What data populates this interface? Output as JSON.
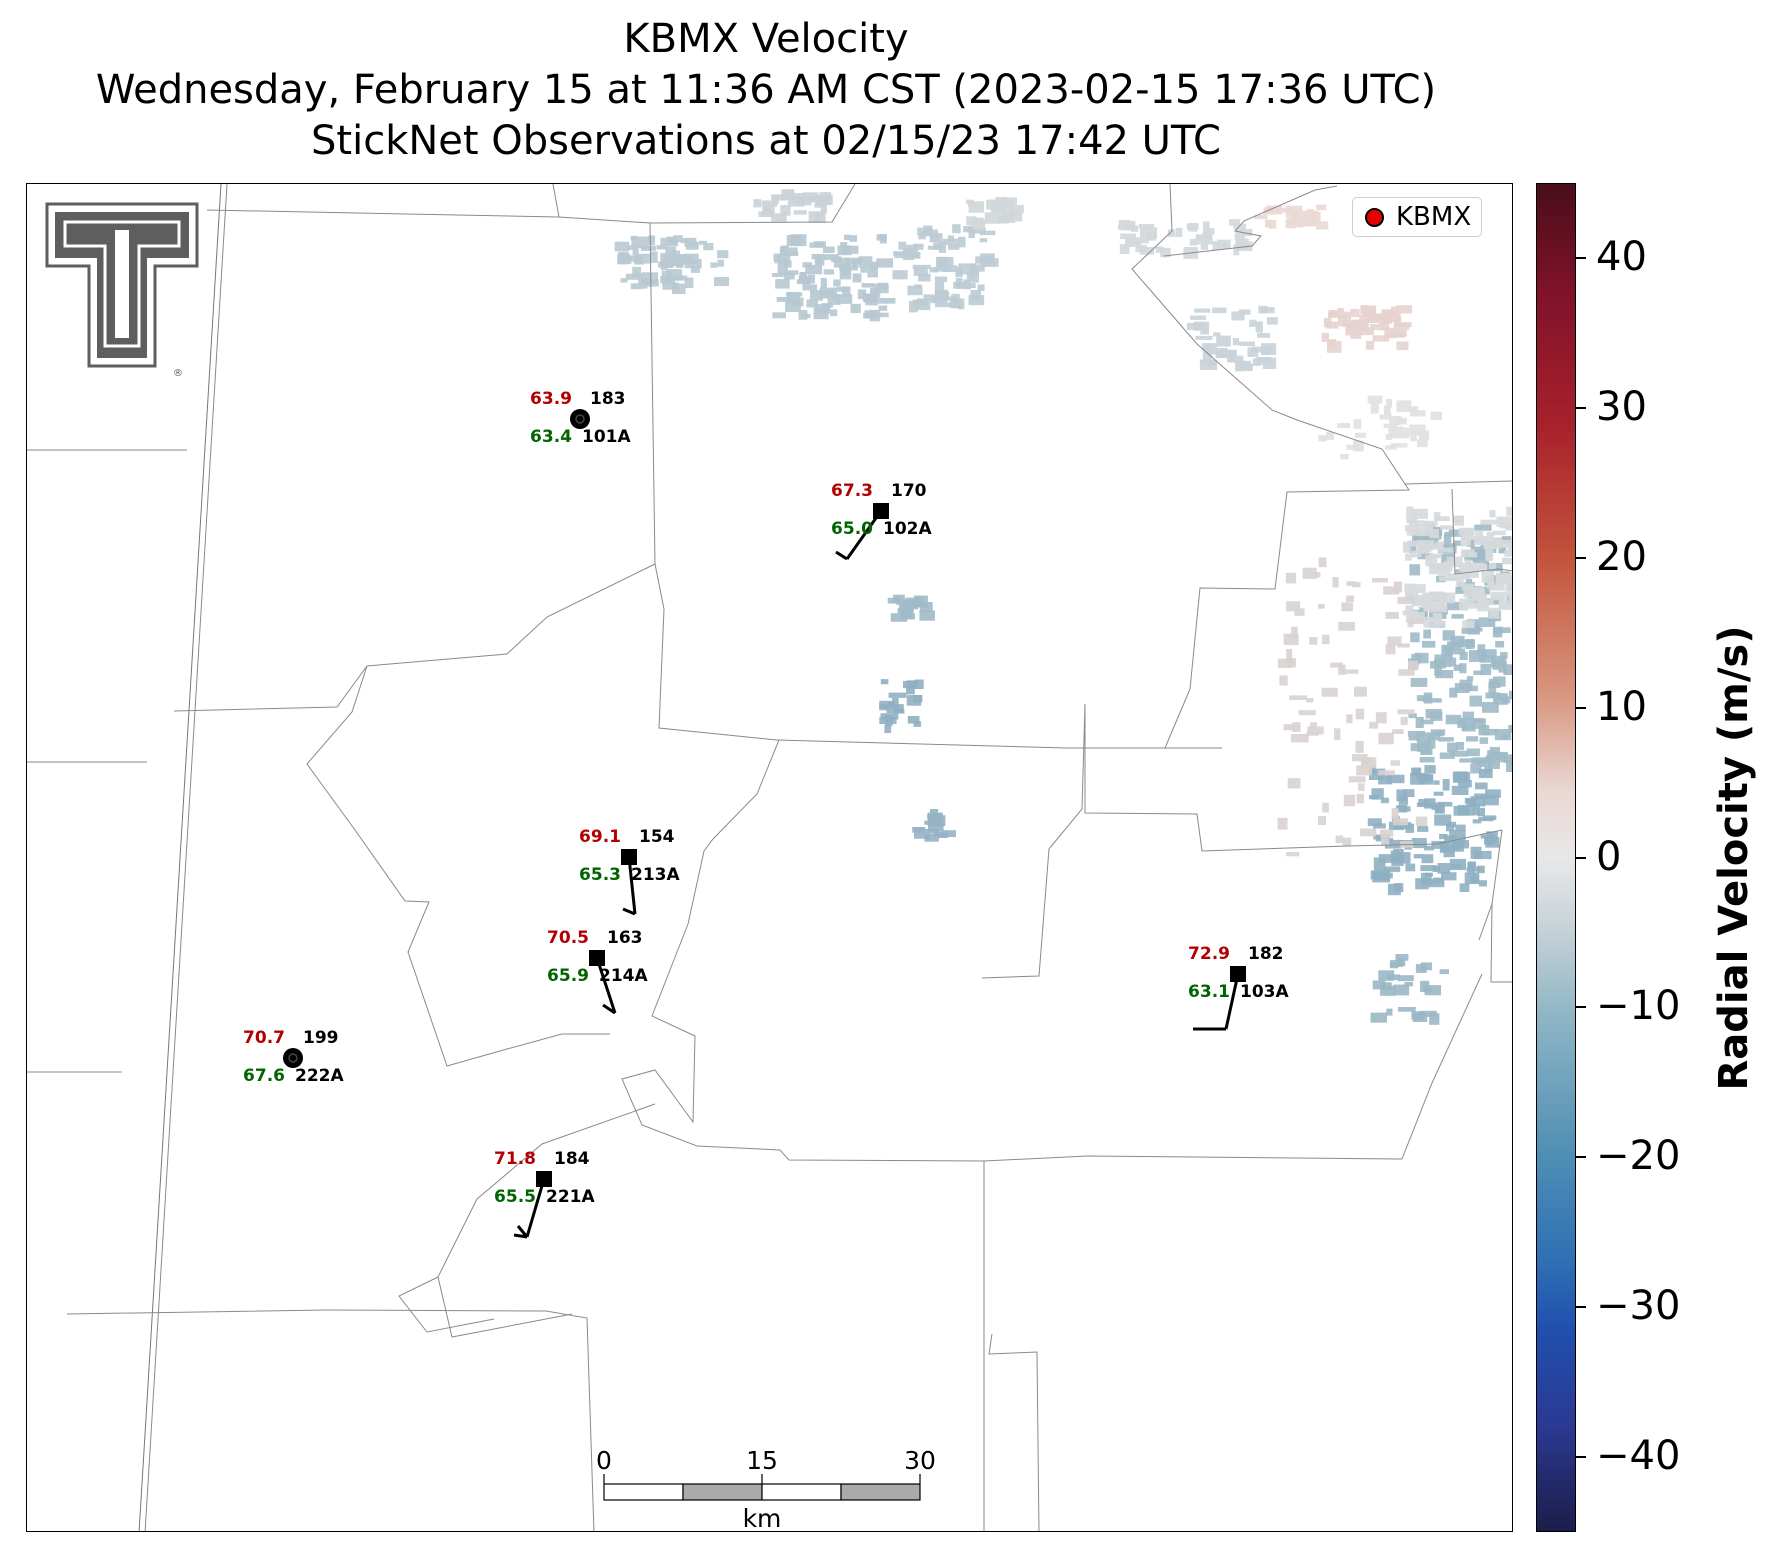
{
  "title": {
    "line1": "KBMX Velocity",
    "line2": "Wednesday, February 15 at 11:36 AM CST (2023-02-15 17:36 UTC)",
    "line3": "StickNet Observations at 02/15/23 17:42 UTC"
  },
  "legend": {
    "label": "KBMX",
    "marker_color": "#e60000"
  },
  "colorbar": {
    "label": "Radial Velocity (m/s)",
    "range": [
      -45,
      45
    ],
    "ticks": [
      40,
      30,
      20,
      10,
      0,
      -10,
      -20,
      -30,
      -40
    ],
    "tick_labels": [
      "40",
      "30",
      "20",
      "10",
      "0",
      "−10",
      "−20",
      "−30",
      "−40"
    ],
    "colormap": "red-white-blue diverging (positive red, negative blue)"
  },
  "scale_bar": {
    "labels": [
      "0",
      "15",
      "30"
    ],
    "unit": "km"
  },
  "logo": {
    "description": "Texas Tech double-T logo",
    "mark": "®"
  },
  "stations": [
    {
      "id": "101A",
      "temp": "63.9",
      "dew": "63.4",
      "pressure": "183",
      "marker": "circle",
      "barb": "calm"
    },
    {
      "id": "102A",
      "temp": "67.3",
      "dew": "65.0",
      "pressure": "170",
      "marker": "square",
      "barb": "wind"
    },
    {
      "id": "213A",
      "temp": "69.1",
      "dew": "65.3",
      "pressure": "154",
      "marker": "square",
      "barb": "wind"
    },
    {
      "id": "214A",
      "temp": "70.5",
      "dew": "65.9",
      "pressure": "163",
      "marker": "square",
      "barb": "wind"
    },
    {
      "id": "222A",
      "temp": "70.7",
      "dew": "67.6",
      "pressure": "199",
      "marker": "circle",
      "barb": "calm"
    },
    {
      "id": "221A",
      "temp": "71.8",
      "dew": "65.5",
      "pressure": "184",
      "marker": "square",
      "barb": "wind"
    },
    {
      "id": "103A",
      "temp": "72.9",
      "dew": "63.1",
      "pressure": "182",
      "marker": "square",
      "barb": "wind"
    }
  ],
  "colors": {
    "temperature": "#b30000",
    "dewpoint": "#006400",
    "station_text": "#000000",
    "county_lines": "#888888"
  }
}
